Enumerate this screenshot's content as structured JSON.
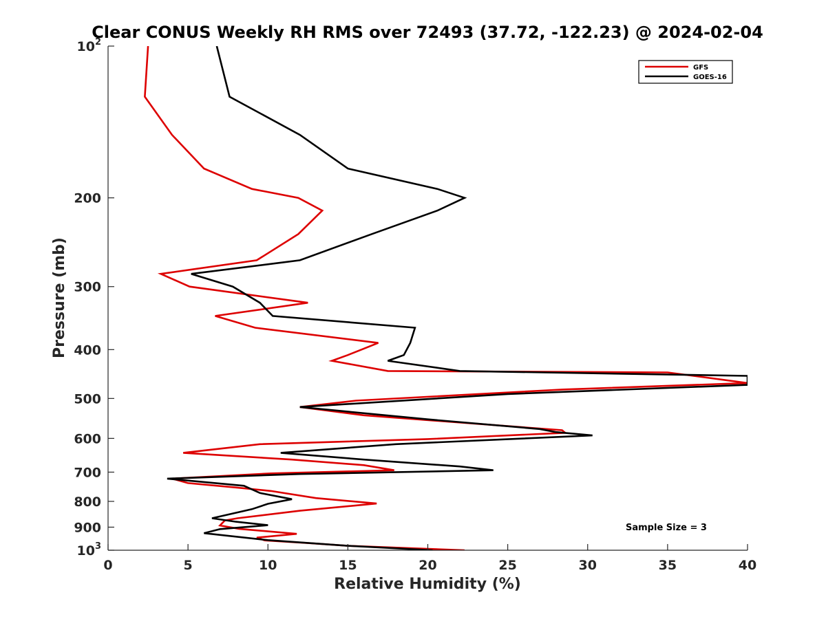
{
  "chart_data": {
    "type": "line",
    "title": "Clear CONUS Weekly RH RMS over 72493 (37.72, -122.23) @ 2024-02-04",
    "xlabel": "Relative Humidity (%)",
    "ylabel": "Pressure (mb)",
    "xlim": [
      0,
      40
    ],
    "ylim": [
      100,
      1000
    ],
    "y_scale": "log",
    "y_reversed": true,
    "grid": false,
    "legend_position": "top-right",
    "x_ticks": [
      0,
      5,
      10,
      15,
      20,
      25,
      30,
      35,
      40
    ],
    "x_tick_labels": [
      "0",
      "5",
      "10",
      "15",
      "20",
      "25",
      "30",
      "35",
      "40"
    ],
    "y_ticks": [
      100,
      200,
      300,
      400,
      500,
      600,
      700,
      800,
      900,
      1000
    ],
    "y_tick_labels": [
      {
        "base": "10",
        "sup": "2"
      },
      {
        "base": "200",
        "sup": ""
      },
      {
        "base": "300",
        "sup": ""
      },
      {
        "base": "400",
        "sup": ""
      },
      {
        "base": "500",
        "sup": ""
      },
      {
        "base": "600",
        "sup": ""
      },
      {
        "base": "700",
        "sup": ""
      },
      {
        "base": "800",
        "sup": ""
      },
      {
        "base": "900",
        "sup": ""
      },
      {
        "base": "10",
        "sup": "3"
      }
    ],
    "annotation": "Sample Size = 3",
    "series": [
      {
        "name": "GFS",
        "color": "#dd0000",
        "points": [
          [
            2.5,
            100
          ],
          [
            2.3,
            126
          ],
          [
            4.0,
            150
          ],
          [
            6.0,
            175
          ],
          [
            9.0,
            192
          ],
          [
            11.9,
            200
          ],
          [
            13.4,
            212
          ],
          [
            11.9,
            236
          ],
          [
            9.3,
            266
          ],
          [
            3.3,
            283
          ],
          [
            5.1,
            300
          ],
          [
            12.5,
            323
          ],
          [
            6.7,
            343
          ],
          [
            9.2,
            362
          ],
          [
            16.9,
            388
          ],
          [
            15.0,
            410
          ],
          [
            14.0,
            421
          ],
          [
            17.5,
            441
          ],
          [
            35.0,
            444
          ],
          [
            40.0,
            466
          ],
          [
            28.5,
            480
          ],
          [
            15.5,
            505
          ],
          [
            12.0,
            520
          ],
          [
            16.0,
            540
          ],
          [
            28.4,
            578
          ],
          [
            28.6,
            585
          ],
          [
            20.0,
            602
          ],
          [
            9.5,
            616
          ],
          [
            4.7,
            641
          ],
          [
            11.5,
            661
          ],
          [
            16.0,
            678
          ],
          [
            17.9,
            694
          ],
          [
            10.2,
            704
          ],
          [
            4.0,
            721
          ],
          [
            5.0,
            736
          ],
          [
            8.0,
            751
          ],
          [
            10.2,
            763
          ],
          [
            13.0,
            788
          ],
          [
            16.8,
            808
          ],
          [
            12.0,
            835
          ],
          [
            8.1,
            864
          ],
          [
            7.3,
            873
          ],
          [
            7.0,
            893
          ],
          [
            8.2,
            907
          ],
          [
            11.8,
            928
          ],
          [
            9.3,
            944
          ],
          [
            9.8,
            956
          ],
          [
            12.5,
            968
          ],
          [
            15.0,
            980
          ],
          [
            22.3,
            1000
          ]
        ]
      },
      {
        "name": "GOES-16",
        "color": "#000000",
        "points": [
          [
            6.8,
            100
          ],
          [
            7.6,
            126
          ],
          [
            12.0,
            150
          ],
          [
            15.0,
            175
          ],
          [
            20.6,
            192
          ],
          [
            22.3,
            200
          ],
          [
            20.6,
            212
          ],
          [
            16.5,
            236
          ],
          [
            12.0,
            266
          ],
          [
            5.2,
            283
          ],
          [
            7.8,
            300
          ],
          [
            9.5,
            323
          ],
          [
            10.3,
            343
          ],
          [
            19.2,
            362
          ],
          [
            18.9,
            388
          ],
          [
            18.5,
            410
          ],
          [
            17.5,
            421
          ],
          [
            22.0,
            441
          ],
          [
            40.0,
            451
          ],
          [
            40.0,
            470
          ],
          [
            25.0,
            490
          ],
          [
            12.0,
            520
          ],
          [
            20.0,
            550
          ],
          [
            27.0,
            575
          ],
          [
            28.0,
            583
          ],
          [
            30.3,
            592
          ],
          [
            18.0,
            616
          ],
          [
            10.8,
            641
          ],
          [
            16.0,
            661
          ],
          [
            22.0,
            682
          ],
          [
            24.1,
            694
          ],
          [
            12.0,
            706
          ],
          [
            3.7,
            721
          ],
          [
            8.5,
            745
          ],
          [
            9.5,
            770
          ],
          [
            11.5,
            792
          ],
          [
            10.0,
            809
          ],
          [
            9.0,
            829
          ],
          [
            6.5,
            864
          ],
          [
            8.0,
            878
          ],
          [
            10.0,
            892
          ],
          [
            7.0,
            908
          ],
          [
            6.0,
            925
          ],
          [
            10.0,
            955
          ],
          [
            15.0,
            980
          ],
          [
            20.3,
            1000
          ]
        ]
      }
    ]
  }
}
